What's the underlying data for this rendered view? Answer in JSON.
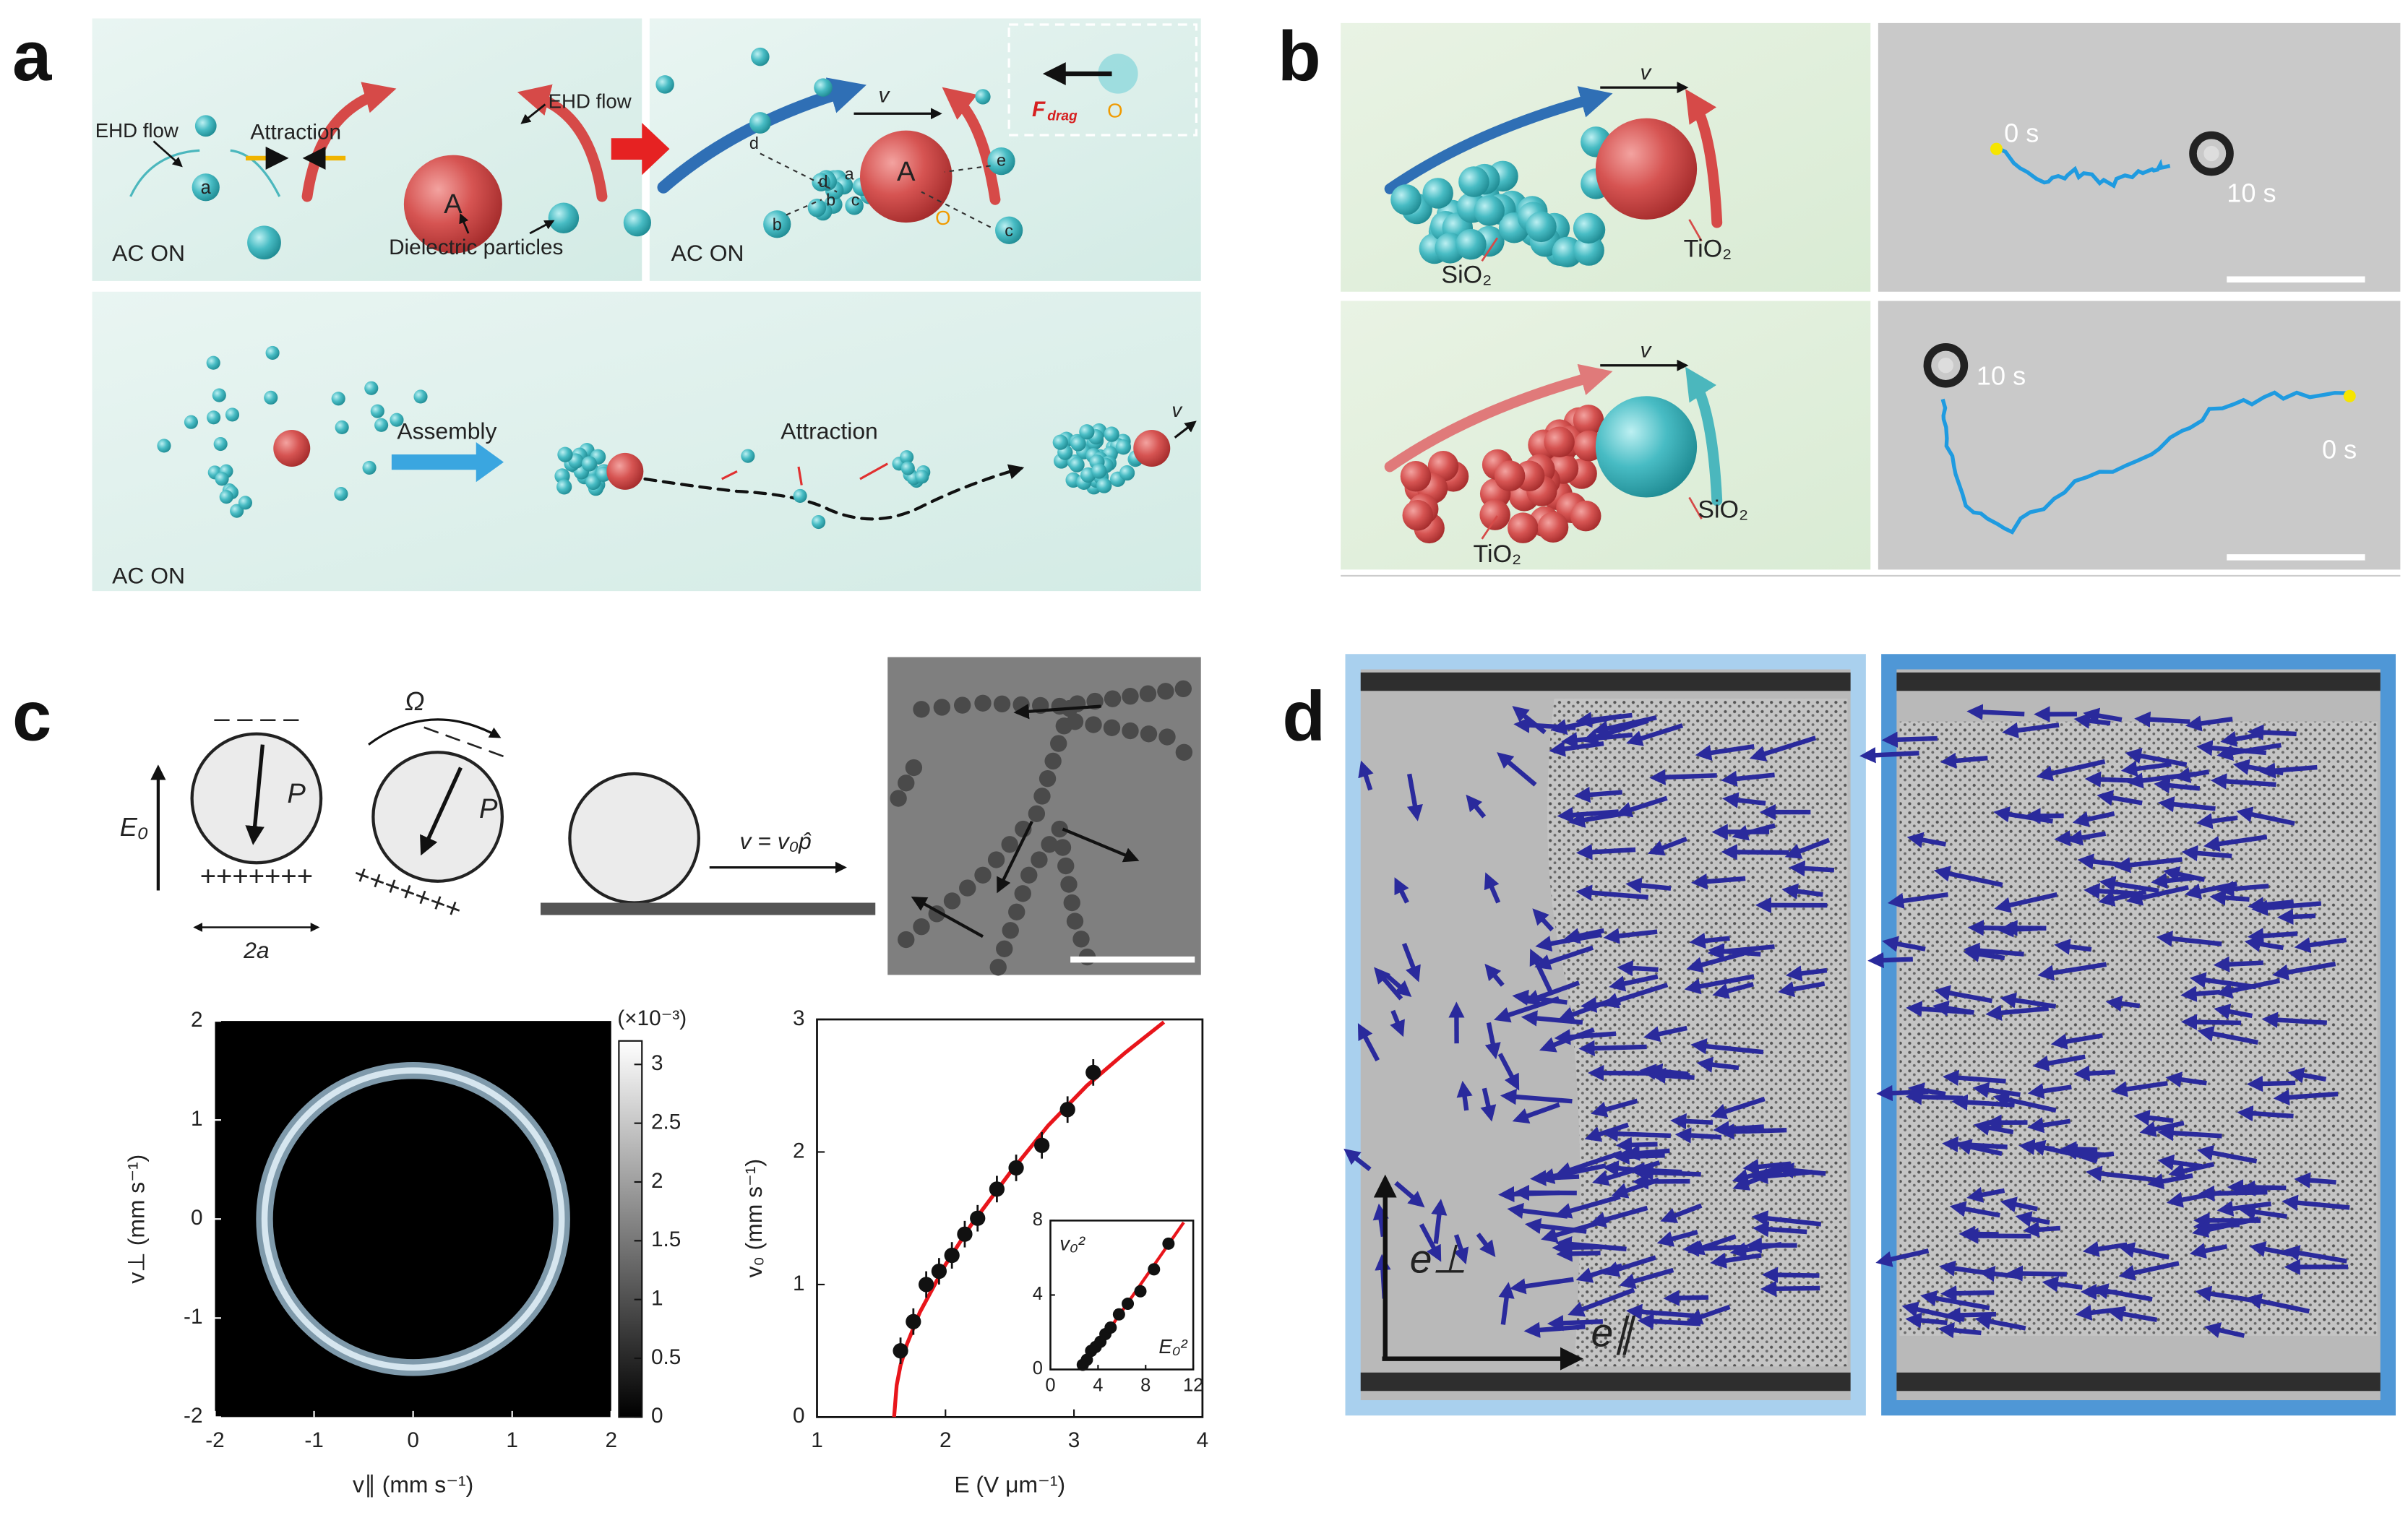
{
  "panel_a": {
    "label": "a",
    "ehd_flow_left": "EHD flow",
    "attraction_top": "Attraction",
    "ehd_flow_right": "EHD flow",
    "particle_big_left": "A",
    "particle_small_left": "a",
    "dielectric_particles": "Dielectric particles",
    "ac_on_left": "AC ON",
    "velocity_top": "v",
    "particle_big_right": "A",
    "small_labels": [
      "d",
      "b",
      "c",
      "e",
      "d",
      "a",
      "b",
      "c"
    ],
    "drag_force": {
      "symbol": "F",
      "subscript": "drag"
    },
    "origin_right": "O",
    "origin_inset": "O",
    "ac_on_right": "AC ON",
    "assembly": "Assembly",
    "attraction_bottom": "Attraction",
    "velocity_bottom": "v",
    "ac_on_bottom": "AC ON"
  },
  "panel_b": {
    "label": "b",
    "rows": [
      {
        "velocity": "v",
        "crowd": "SiO₂",
        "motor": "TiO₂",
        "start": "0 s",
        "end": "10 s"
      },
      {
        "velocity": "v",
        "crowd": "TiO₂",
        "motor": "SiO₂",
        "start": "0 s",
        "end": "10 s"
      }
    ]
  },
  "panel_c": {
    "label": "c",
    "schematic": {
      "field": "E₀",
      "rotation": "Ω",
      "polarization_1": "P",
      "polarization_2": "P",
      "diameter": "2a",
      "velocity": "v = v₀p̂",
      "charges_negative": "‒ ‒ ‒ ‒",
      "charges_positive": "+++++++"
    },
    "heatmap": {
      "type": "heatmap",
      "xlabel": "v∥ (mm s⁻¹)",
      "ylabel": "v⊥ (mm s⁻¹)",
      "xlim": [
        -2,
        2
      ],
      "xticks": [
        -2,
        -1,
        0,
        1,
        2
      ],
      "ylim": [
        -2,
        2
      ],
      "yticks": [
        -2,
        -1,
        0,
        1,
        2
      ],
      "ring_radius": 1.5,
      "colorbar": {
        "label": "(×10⁻³)",
        "lim": [
          0,
          3.2
        ],
        "ticks": [
          0,
          0.5,
          1,
          1.5,
          2,
          2.5,
          3
        ]
      }
    },
    "speed_plot": {
      "type": "scatter",
      "xlabel": "E (V μm⁻¹)",
      "ylabel": "v₀ (mm s⁻¹)",
      "xlim": [
        1,
        4
      ],
      "xticks": [
        1,
        2,
        3,
        4
      ],
      "ylim": [
        0,
        3
      ],
      "yticks": [
        0,
        1,
        2,
        3
      ],
      "x": [
        1.65,
        1.75,
        1.85,
        1.95,
        2.05,
        2.15,
        2.25,
        2.4,
        2.55,
        2.75,
        2.95,
        3.15
      ],
      "values": [
        0.5,
        0.72,
        1.0,
        1.1,
        1.22,
        1.38,
        1.5,
        1.72,
        1.88,
        2.05,
        2.32,
        2.6
      ],
      "errors": [
        0.1,
        0.1,
        0.1,
        0.1,
        0.1,
        0.1,
        0.1,
        0.1,
        0.1,
        0.1,
        0.1,
        0.1
      ],
      "color": "#111111",
      "fit": {
        "color": "#e8151b",
        "x": [
          1.6,
          1.62,
          1.65,
          1.7,
          1.8,
          2.0,
          2.2,
          2.5,
          2.8,
          3.1,
          3.4,
          3.7
        ],
        "values": [
          0,
          0.24,
          0.39,
          0.55,
          0.79,
          1.15,
          1.45,
          1.84,
          2.2,
          2.5,
          2.75,
          2.98
        ]
      },
      "inset": {
        "xlabel": "E₀²",
        "ylabel": "v₀²",
        "xlim": [
          0,
          12
        ],
        "xticks": [
          0,
          4,
          8,
          12
        ],
        "ylim": [
          0,
          8
        ],
        "yticks": [
          0,
          4,
          8
        ],
        "x": [
          2.72,
          3.06,
          3.42,
          3.8,
          4.2,
          4.62,
          5.06,
          5.76,
          6.5,
          7.56,
          8.7,
          9.92
        ],
        "values": [
          0.25,
          0.52,
          1.0,
          1.21,
          1.49,
          1.9,
          2.25,
          2.96,
          3.53,
          4.2,
          5.38,
          6.76
        ],
        "fit": {
          "x": [
            2.6,
            11.2
          ],
          "values": [
            0,
            7.9
          ]
        }
      }
    }
  },
  "panel_d": {
    "label": "d",
    "axis_perp": "e⊥",
    "axis_par": "e∥"
  }
}
